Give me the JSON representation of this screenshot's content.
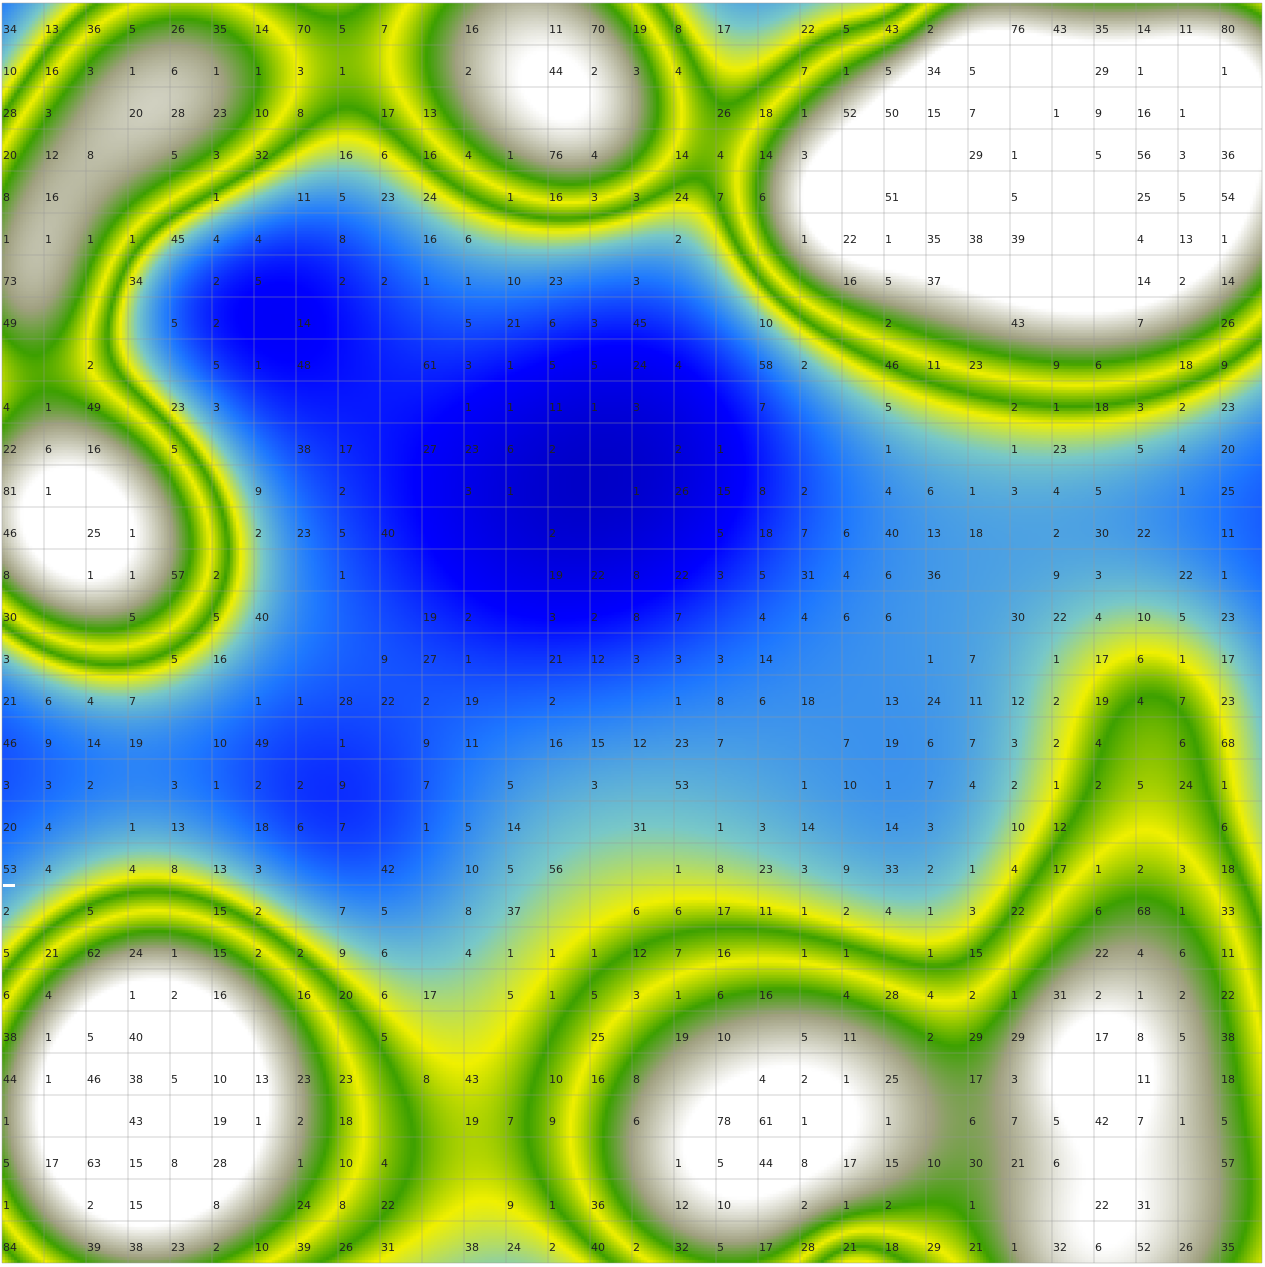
{
  "map": {
    "type": "heatmap-terrain",
    "grid": {
      "rows": 30,
      "cols": 30
    },
    "colors": {
      "deep": "#0000b4",
      "low": "#0000ff",
      "mid_low": "#1e78ff",
      "mid": "#78c8c8",
      "rising": "#f0f000",
      "green": "#3ca000",
      "olive": "#a0a080",
      "peak": "#ffffff"
    },
    "cell_values": [
      [
        "34",
        "13",
        "36",
        "5",
        "26",
        "35",
        "14",
        "70",
        "5",
        "7",
        "",
        "16",
        "",
        "11",
        "70",
        "19",
        "8",
        "17",
        "",
        "22",
        "5",
        "43",
        "2",
        "",
        "76",
        "43",
        "35",
        "14",
        "11",
        "80"
      ],
      [
        "10",
        "16",
        "3",
        "1",
        "6",
        "1",
        "1",
        "3",
        "1",
        "",
        "",
        "2",
        "",
        "44",
        "2",
        "3",
        "4",
        "",
        "",
        "7",
        "1",
        "5",
        "34",
        "5",
        "",
        "",
        "29",
        "1",
        "",
        "1"
      ],
      [
        "28",
        "3",
        "",
        "20",
        "28",
        "23",
        "10",
        "8",
        "",
        "17",
        "13",
        "",
        "",
        "",
        "",
        "",
        "",
        "26",
        "18",
        "1",
        "52",
        "50",
        "15",
        "7",
        "",
        "1",
        "9",
        "16",
        "1",
        ""
      ],
      [
        "20",
        "12",
        "8",
        "",
        "5",
        "3",
        "32",
        "",
        "16",
        "6",
        "16",
        "4",
        "1",
        "76",
        "4",
        "",
        "14",
        "4",
        "14",
        "3",
        "",
        "",
        "",
        "29",
        "1",
        "",
        "5",
        "56",
        "3",
        "36"
      ],
      [
        "8",
        "16",
        "",
        "",
        "",
        "1",
        "",
        "11",
        "5",
        "23",
        "24",
        "",
        "1",
        "16",
        "3",
        "3",
        "24",
        "7",
        "6",
        "",
        "",
        "51",
        "",
        "",
        "5",
        "",
        "",
        "25",
        "5",
        "54"
      ],
      [
        "1",
        "1",
        "1",
        "1",
        "45",
        "4",
        "4",
        "",
        "8",
        "",
        "16",
        "6",
        "",
        "",
        "",
        "",
        "2",
        "",
        "",
        "1",
        "22",
        "1",
        "35",
        "38",
        "39",
        "",
        "",
        "4",
        "13",
        "1"
      ],
      [
        "73",
        "",
        "",
        "34",
        "",
        "2",
        "5",
        "",
        "2",
        "2",
        "1",
        "1",
        "10",
        "23",
        "",
        "3",
        "",
        "",
        "",
        "",
        "16",
        "5",
        "37",
        "",
        "",
        "",
        "",
        "14",
        "2",
        "14"
      ],
      [
        "49",
        "",
        "",
        "",
        "5",
        "2",
        "",
        "14",
        "",
        "",
        "",
        "5",
        "21",
        "6",
        "3",
        "45",
        "",
        "",
        "10",
        "",
        "",
        "2",
        "",
        "",
        "43",
        "",
        "",
        "7",
        "",
        "26"
      ],
      [
        "",
        "",
        "2",
        "",
        "",
        "5",
        "1",
        "48",
        "",
        "",
        "61",
        "3",
        "1",
        "5",
        "5",
        "24",
        "4",
        "",
        "58",
        "2",
        "",
        "46",
        "11",
        "23",
        "",
        "9",
        "6",
        "",
        "18",
        "9"
      ],
      [
        "4",
        "1",
        "49",
        "",
        "23",
        "3",
        "",
        "",
        "",
        "",
        "",
        "1",
        "1",
        "11",
        "1",
        "3",
        "",
        "",
        "7",
        "",
        "",
        "5",
        "",
        "",
        "2",
        "1",
        "18",
        "3",
        "2",
        "23"
      ],
      [
        "22",
        "6",
        "16",
        "",
        "5",
        "",
        "",
        "38",
        "17",
        "",
        "27",
        "23",
        "6",
        "2",
        "",
        "",
        "2",
        "1",
        "",
        "",
        "",
        "1",
        "",
        "",
        "1",
        "23",
        "",
        "5",
        "4",
        "20"
      ],
      [
        "81",
        "1",
        "",
        "",
        "",
        "",
        "9",
        "",
        "2",
        "",
        "",
        "3",
        "1",
        "",
        "",
        "1",
        "26",
        "15",
        "8",
        "2",
        "",
        "4",
        "6",
        "1",
        "3",
        "4",
        "5",
        "",
        "1",
        "25"
      ],
      [
        "46",
        "",
        "25",
        "1",
        "",
        "",
        "2",
        "23",
        "5",
        "40",
        "",
        "",
        "",
        "2",
        "",
        "",
        "",
        "5",
        "18",
        "7",
        "6",
        "40",
        "13",
        "18",
        "",
        "2",
        "30",
        "22",
        "",
        "11"
      ],
      [
        "8",
        "",
        "1",
        "1",
        "57",
        "2",
        "",
        "",
        "1",
        "",
        "",
        "",
        "",
        "19",
        "22",
        "8",
        "22",
        "3",
        "5",
        "31",
        "4",
        "6",
        "36",
        "",
        "",
        "9",
        "3",
        "",
        "22",
        "1"
      ],
      [
        "30",
        "",
        "",
        "5",
        "",
        "5",
        "40",
        "",
        "",
        "",
        "19",
        "2",
        "",
        "3",
        "2",
        "8",
        "7",
        "",
        "4",
        "4",
        "6",
        "6",
        "",
        "",
        "30",
        "22",
        "4",
        "10",
        "5",
        "23"
      ],
      [
        "3",
        "",
        "",
        "",
        "5",
        "16",
        "",
        "",
        "",
        "9",
        "27",
        "1",
        "",
        "21",
        "12",
        "3",
        "3",
        "3",
        "14",
        "",
        "",
        "",
        "1",
        "7",
        "",
        "1",
        "17",
        "6",
        "1",
        "17"
      ],
      [
        "21",
        "6",
        "4",
        "7",
        "",
        "",
        "1",
        "1",
        "28",
        "22",
        "2",
        "19",
        "",
        "2",
        "",
        "",
        "1",
        "8",
        "6",
        "18",
        "",
        "13",
        "24",
        "11",
        "12",
        "2",
        "19",
        "4",
        "7",
        "23"
      ],
      [
        "46",
        "9",
        "14",
        "19",
        "",
        "10",
        "49",
        "",
        "1",
        "",
        "9",
        "11",
        "",
        "16",
        "15",
        "12",
        "23",
        "7",
        "",
        "",
        "7",
        "19",
        "6",
        "7",
        "3",
        "2",
        "4",
        "",
        "6",
        "68"
      ],
      [
        "3",
        "3",
        "2",
        "",
        "3",
        "1",
        "2",
        "2",
        "9",
        "",
        "7",
        "",
        "5",
        "",
        "3",
        "",
        "53",
        "",
        "",
        "1",
        "10",
        "1",
        "7",
        "4",
        "2",
        "1",
        "2",
        "5",
        "24",
        "1"
      ],
      [
        "20",
        "4",
        "",
        "1",
        "13",
        "",
        "18",
        "6",
        "7",
        "",
        "1",
        "5",
        "14",
        "",
        "",
        "31",
        "",
        "1",
        "3",
        "14",
        "",
        "14",
        "3",
        "",
        "10",
        "12",
        "",
        "",
        "",
        "6"
      ],
      [
        "53",
        "4",
        "",
        "4",
        "8",
        "13",
        "3",
        "",
        "",
        "42",
        "",
        "10",
        "5",
        "56",
        "",
        "",
        "1",
        "8",
        "23",
        "3",
        "9",
        "33",
        "2",
        "1",
        "4",
        "17",
        "1",
        "2",
        "3",
        "18"
      ],
      [
        "2",
        "",
        "5",
        "",
        "",
        "15",
        "2",
        "",
        "7",
        "5",
        "",
        "8",
        "37",
        "",
        "",
        "6",
        "6",
        "17",
        "11",
        "1",
        "2",
        "4",
        "1",
        "3",
        "22",
        "",
        "6",
        "68",
        "1",
        "33"
      ],
      [
        "5",
        "21",
        "62",
        "24",
        "1",
        "15",
        "2",
        "2",
        "9",
        "6",
        "",
        "4",
        "1",
        "1",
        "1",
        "12",
        "7",
        "16",
        "",
        "1",
        "1",
        "",
        "1",
        "15",
        "",
        "",
        "22",
        "4",
        "6",
        "11"
      ],
      [
        "6",
        "4",
        "",
        "1",
        "2",
        "16",
        "",
        "16",
        "20",
        "6",
        "17",
        "",
        "5",
        "1",
        "5",
        "3",
        "1",
        "6",
        "16",
        "",
        "4",
        "28",
        "4",
        "2",
        "1",
        "31",
        "2",
        "1",
        "2",
        "22"
      ],
      [
        "38",
        "1",
        "5",
        "40",
        "",
        "",
        "",
        "",
        "",
        "5",
        "",
        "",
        "",
        "",
        "25",
        "",
        "19",
        "10",
        "",
        "5",
        "11",
        "",
        "2",
        "29",
        "29",
        "",
        "17",
        "8",
        "5",
        "38"
      ],
      [
        "44",
        "1",
        "46",
        "38",
        "5",
        "10",
        "13",
        "23",
        "23",
        "",
        "8",
        "43",
        "",
        "10",
        "16",
        "8",
        "",
        "",
        "4",
        "2",
        "1",
        "25",
        "",
        "17",
        "3",
        "",
        "",
        "11",
        "",
        "18"
      ],
      [
        "1",
        "",
        "",
        "43",
        "",
        "19",
        "1",
        "2",
        "18",
        "",
        "",
        "19",
        "7",
        "9",
        "",
        "6",
        "",
        "78",
        "61",
        "1",
        "",
        "1",
        "",
        "6",
        "7",
        "5",
        "42",
        "7",
        "1",
        "5"
      ],
      [
        "5",
        "17",
        "63",
        "15",
        "8",
        "28",
        "",
        "1",
        "10",
        "4",
        "",
        "",
        "",
        "",
        "",
        "",
        "1",
        "5",
        "44",
        "8",
        "17",
        "15",
        "10",
        "30",
        "21",
        "6",
        "",
        "",
        "",
        "57"
      ],
      [
        "1",
        "",
        "2",
        "15",
        "",
        "8",
        "",
        "24",
        "8",
        "22",
        "",
        "",
        "9",
        "1",
        "36",
        "",
        "12",
        "10",
        "",
        "2",
        "1",
        "2",
        "",
        "1",
        "",
        "",
        "22",
        "31",
        "",
        ""
      ],
      [
        "84",
        "",
        "39",
        "38",
        "23",
        "2",
        "10",
        "39",
        "26",
        "31",
        "",
        "38",
        "24",
        "2",
        "40",
        "2",
        "32",
        "5",
        "17",
        "28",
        "21",
        "18",
        "29",
        "21",
        "1",
        "32",
        "6",
        "52",
        "26",
        "35"
      ]
    ]
  }
}
